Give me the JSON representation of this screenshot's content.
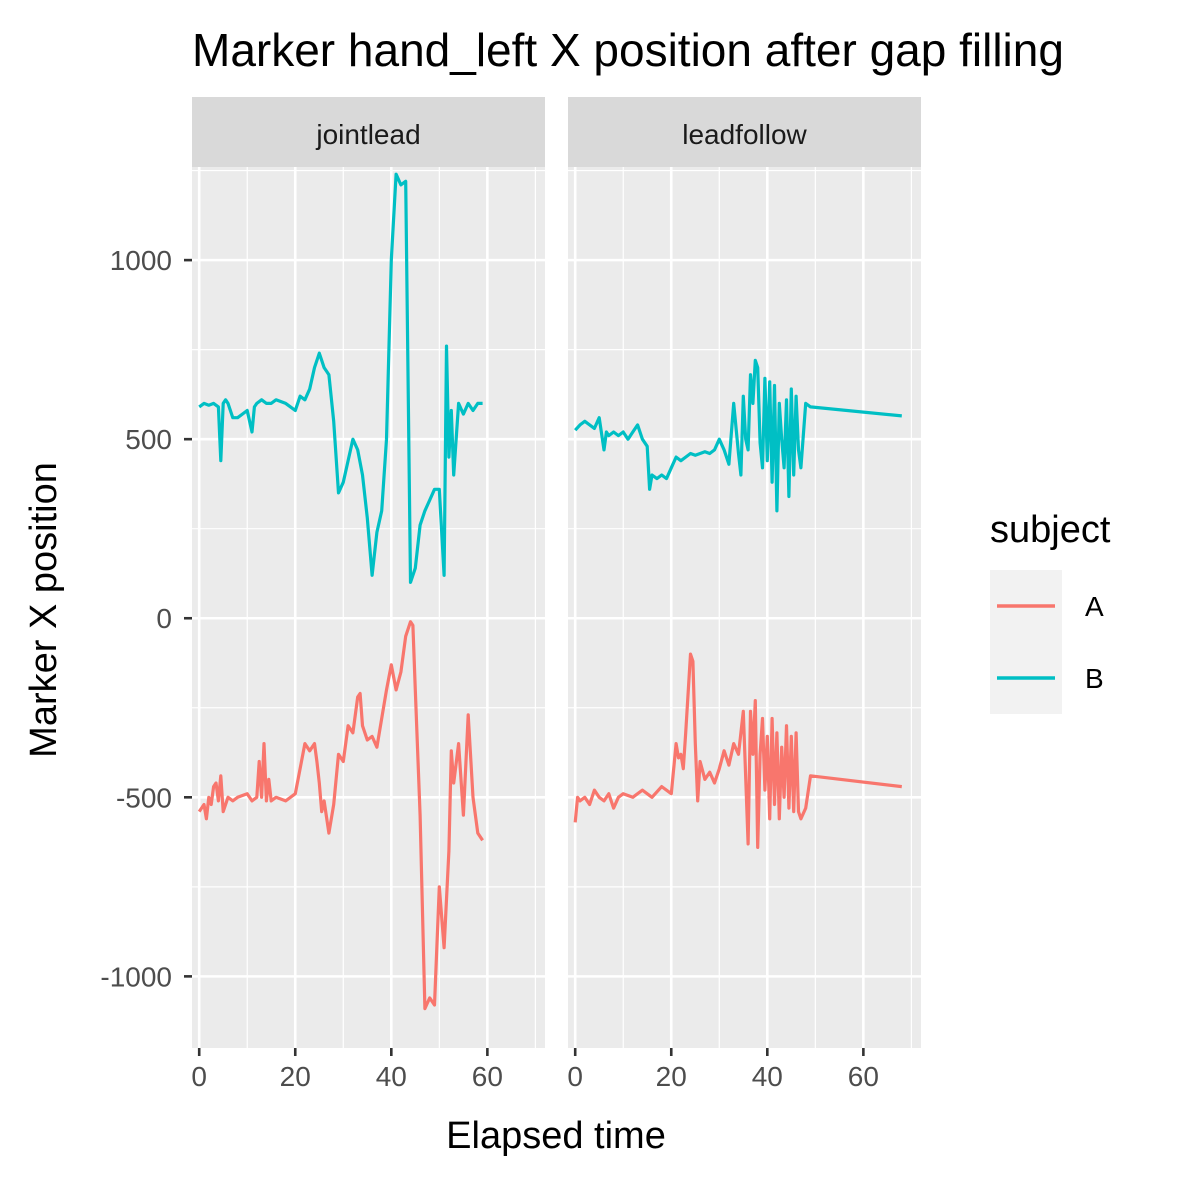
{
  "chart_data": {
    "type": "line",
    "title": "Marker hand_left X position after gap filling",
    "xlabel": "Elapsed time",
    "ylabel": "Marker X position",
    "xlim": [
      -1.5,
      72
    ],
    "ylim": [
      -1200,
      1260
    ],
    "x_ticks": [
      0,
      20,
      40,
      60
    ],
    "y_ticks": [
      -1000,
      -500,
      0,
      500,
      1000
    ],
    "y_tick_labels": [
      "-1000",
      "-500",
      "0",
      "500",
      "1000"
    ],
    "grid": true,
    "legend": {
      "title": "subject",
      "position": "right"
    },
    "colors": {
      "A": "#F8766D",
      "B": "#00BFC4",
      "panel_bg": "#EBEBEB",
      "strip_bg": "#D9D9D9",
      "grid": "#ffffff"
    },
    "panels": [
      {
        "name": "jointlead",
        "series": [
          {
            "name": "A",
            "x": [
              0,
              1,
              1.5,
              2,
              2.5,
              3,
              3.5,
              4,
              4.5,
              5,
              6,
              7,
              8,
              10,
              11,
              12,
              12.5,
              13,
              13.5,
              14,
              14.5,
              15,
              16,
              18,
              20,
              21,
              22,
              23,
              24,
              24.5,
              25,
              25.5,
              26,
              27,
              28,
              29,
              30,
              31,
              32,
              33,
              33.5,
              34,
              35,
              36,
              37,
              38,
              39,
              40,
              41,
              42,
              43,
              44,
              44.5,
              45,
              46,
              47,
              48,
              49,
              50,
              51,
              52,
              52.5,
              53,
              54,
              55,
              56,
              57,
              58,
              59
            ],
            "values": [
              -540,
              -520,
              -560,
              -500,
              -520,
              -470,
              -460,
              -510,
              -440,
              -540,
              -500,
              -510,
              -500,
              -490,
              -510,
              -500,
              -400,
              -500,
              -350,
              -510,
              -450,
              -510,
              -500,
              -510,
              -490,
              -420,
              -350,
              -370,
              -350,
              -400,
              -460,
              -540,
              -510,
              -600,
              -520,
              -380,
              -400,
              -300,
              -320,
              -220,
              -210,
              -300,
              -340,
              -330,
              -360,
              -280,
              -200,
              -130,
              -200,
              -150,
              -50,
              -10,
              -20,
              -200,
              -550,
              -1090,
              -1060,
              -1080,
              -750,
              -920,
              -650,
              -370,
              -460,
              -350,
              -550,
              -270,
              -500,
              -600,
              -620
            ]
          },
          {
            "name": "B",
            "x": [
              0,
              1,
              2,
              3,
              4,
              4.5,
              5,
              5.5,
              6,
              7,
              8,
              9,
              10,
              11,
              11.5,
              12,
              13,
              14,
              15,
              16,
              18,
              19,
              20,
              21,
              22,
              23,
              24,
              25,
              25.5,
              26,
              26.5,
              27,
              28,
              29,
              30,
              31,
              32,
              33,
              34,
              35,
              36,
              37,
              38,
              39,
              40,
              41,
              42,
              43,
              44,
              44.5,
              45,
              46,
              47,
              48,
              49,
              50,
              51,
              51.5,
              52,
              52.5,
              53,
              54,
              55,
              56,
              57,
              58,
              59
            ],
            "values": [
              590,
              600,
              595,
              600,
              590,
              440,
              600,
              610,
              600,
              560,
              560,
              570,
              580,
              520,
              590,
              600,
              610,
              600,
              600,
              610,
              600,
              590,
              580,
              620,
              610,
              640,
              700,
              740,
              720,
              700,
              690,
              680,
              550,
              350,
              380,
              440,
              500,
              470,
              400,
              280,
              120,
              240,
              300,
              500,
              1000,
              1240,
              1210,
              1220,
              100,
              120,
              140,
              260,
              300,
              330,
              360,
              360,
              120,
              760,
              450,
              580,
              400,
              600,
              570,
              600,
              580,
              600,
              600
            ]
          }
        ]
      },
      {
        "name": "leadfollow",
        "series": [
          {
            "name": "A",
            "x": [
              0,
              0.5,
              1,
              2,
              3,
              4,
              5,
              6,
              7,
              8,
              9,
              10,
              12,
              14,
              16,
              18,
              20,
              21,
              21.5,
              22,
              22.5,
              23,
              24,
              24.5,
              25,
              25.5,
              26,
              27,
              28,
              29,
              30,
              31,
              32,
              33,
              34,
              35,
              36,
              36.5,
              37,
              37.5,
              38,
              38.5,
              39,
              39.5,
              40,
              40.5,
              41,
              41.5,
              42,
              42.5,
              43,
              43.5,
              44,
              44.5,
              45,
              45.5,
              46,
              46.5,
              47,
              48,
              49,
              68
            ],
            "values": [
              -570,
              -500,
              -510,
              -500,
              -520,
              -480,
              -500,
              -510,
              -490,
              -530,
              -500,
              -490,
              -500,
              -480,
              -500,
              -470,
              -490,
              -350,
              -390,
              -380,
              -420,
              -320,
              -100,
              -120,
              -350,
              -510,
              -400,
              -450,
              -430,
              -460,
              -420,
              -370,
              -410,
              -350,
              -380,
              -260,
              -630,
              -260,
              -380,
              -230,
              -640,
              -380,
              -280,
              -480,
              -330,
              -560,
              -280,
              -520,
              -320,
              -560,
              -360,
              -500,
              -300,
              -530,
              -330,
              -540,
              -320,
              -540,
              -560,
              -530,
              -440,
              -470
            ]
          },
          {
            "name": "B",
            "x": [
              0,
              1,
              2,
              3,
              4,
              5,
              6,
              6.5,
              7,
              8,
              9,
              10,
              11,
              12,
              13,
              14,
              15,
              15.5,
              16,
              17,
              18,
              19,
              20,
              21,
              22,
              23,
              24,
              25,
              26,
              27,
              28,
              29,
              30,
              31,
              32,
              33,
              34,
              34.5,
              35,
              35.5,
              36,
              36.5,
              37,
              37.5,
              38,
              38.5,
              39,
              39.5,
              40,
              40.5,
              41,
              41.5,
              42,
              42.5,
              43,
              43.5,
              44,
              44.5,
              45,
              45.5,
              46,
              46.5,
              47,
              48,
              49,
              68
            ],
            "values": [
              525,
              540,
              550,
              540,
              530,
              560,
              470,
              520,
              510,
              520,
              510,
              520,
              500,
              520,
              540,
              500,
              480,
              360,
              400,
              390,
              400,
              390,
              420,
              450,
              440,
              450,
              460,
              455,
              460,
              465,
              460,
              470,
              500,
              470,
              430,
              600,
              460,
              400,
              620,
              500,
              470,
              680,
              600,
              720,
              700,
              490,
              420,
              670,
              440,
              660,
              380,
              650,
              300,
              600,
              500,
              420,
              610,
              340,
              640,
              400,
              620,
              470,
              420,
              600,
              590,
              565
            ]
          }
        ]
      }
    ]
  }
}
